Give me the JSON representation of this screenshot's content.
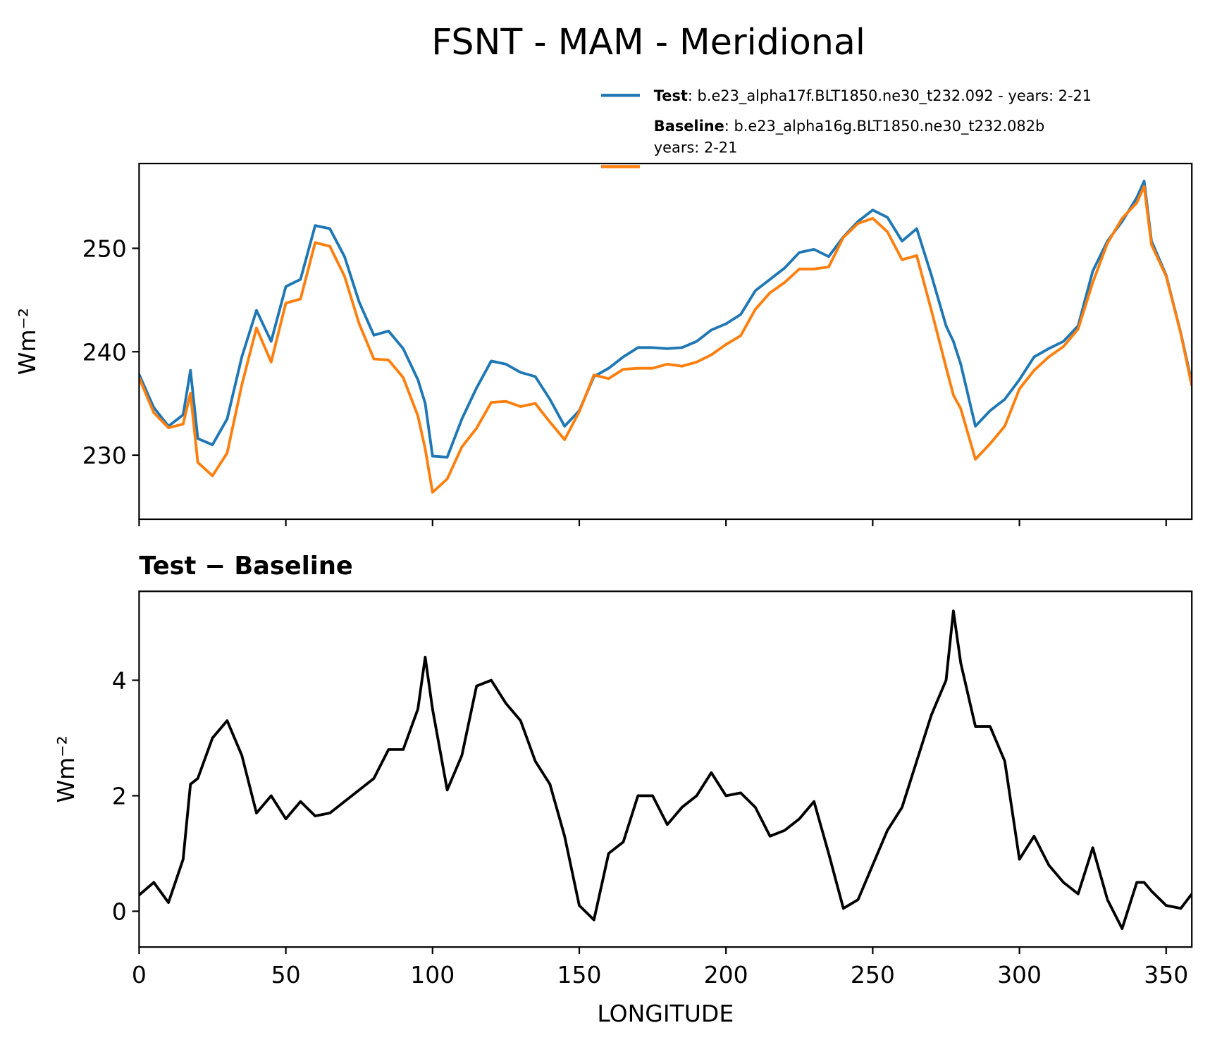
{
  "title": "FSNT - MAM - Meridional",
  "chart_data": [
    {
      "type": "line",
      "y_label": "Wm⁻²",
      "xlim": [
        0,
        358.75
      ],
      "ylim": [
        223.8,
        258.2
      ],
      "xticks": [
        0,
        50,
        100,
        150,
        200,
        250,
        300,
        350
      ],
      "xticklabels": false,
      "yticks": [
        230,
        240,
        250
      ],
      "legend": "upper right",
      "x": [
        0,
        5,
        10,
        15,
        17.5,
        20,
        25,
        30,
        35,
        40,
        45,
        50,
        55,
        60,
        65,
        70,
        75,
        80,
        85,
        90,
        95,
        97.5,
        100,
        105,
        110,
        115,
        120,
        125,
        130,
        135,
        140,
        145,
        150,
        155,
        160,
        165,
        170,
        175,
        180,
        185,
        190,
        195,
        200,
        205,
        210,
        215,
        220,
        225,
        230,
        235,
        240,
        245,
        250,
        255,
        260,
        265,
        270,
        275,
        277.5,
        280,
        285,
        290,
        295,
        300,
        305,
        310,
        315,
        320,
        325,
        330,
        335,
        340,
        342.5,
        345,
        350,
        355,
        358.75
      ],
      "series": [
        {
          "name": "Test",
          "description": [
            ": b.e23_alpha17f.BLT1850.ne30_t232.092 - years: 2-21"
          ],
          "color": "#1f77b4",
          "values": [
            237.8,
            234.6,
            232.8,
            233.9,
            238.2,
            231.6,
            231.0,
            233.5,
            239.5,
            244,
            241,
            246.3,
            247,
            252.2,
            251.9,
            249.2,
            244.8,
            241.6,
            242,
            240.3,
            237.3,
            235.0,
            229.9,
            229.8,
            233.5,
            236.5,
            239.1,
            238.8,
            238,
            237.6,
            235.4,
            232.8,
            234.3,
            237.6,
            238.4,
            239.5,
            240.4,
            240.4,
            240.3,
            240.4,
            241,
            242.1,
            242.7,
            243.6,
            245.9,
            247,
            248.1,
            249.6,
            249.9,
            249.2,
            251.1,
            252.6,
            253.7,
            253,
            250.7,
            251.9,
            247.4,
            242.5,
            241,
            238.8,
            232.8,
            234.3,
            235.4,
            237.3,
            239.5,
            240.3,
            241,
            242.5,
            247.8,
            250.7,
            252.6,
            254.9,
            256.5,
            250.7,
            247.4,
            241.8,
            237
          ]
        },
        {
          "name": "Baseline",
          "description": [
            ": b.e23_alpha16g.BLT1850.ne30_t232.082b",
            "years: 2-21"
          ],
          "color": "#ff7f0e",
          "values": [
            237.5,
            234.1,
            232.65,
            233.0,
            236.0,
            229.3,
            228.0,
            230.2,
            236.8,
            242.3,
            239,
            244.7,
            245.1,
            250.55,
            250.2,
            247.3,
            242.7,
            239.3,
            239.2,
            237.5,
            233.8,
            230.6,
            226.4,
            227.7,
            230.8,
            232.6,
            235.1,
            235.2,
            234.7,
            235,
            233.2,
            231.5,
            234.2,
            237.75,
            237.4,
            238.3,
            238.4,
            238.4,
            238.8,
            238.6,
            239,
            239.7,
            240.7,
            241.55,
            244.1,
            245.7,
            246.7,
            248,
            248,
            248.2,
            251.05,
            252.4,
            252.9,
            251.6,
            248.9,
            249.3,
            244,
            238.5,
            235.8,
            234.5,
            229.6,
            231.1,
            232.8,
            236.4,
            238.2,
            239.5,
            240.5,
            242.2,
            246.7,
            250.5,
            252.9,
            254.4,
            256,
            250.35,
            247.3,
            241.75,
            236.7
          ]
        }
      ]
    },
    {
      "type": "line",
      "title": "Test − Baseline",
      "x_label": "LONGITUDE",
      "y_label": "Wm⁻²",
      "xlim": [
        0,
        358.75
      ],
      "ylim": [
        -0.62,
        5.54
      ],
      "xticks": [
        0,
        50,
        100,
        150,
        200,
        250,
        300,
        350
      ],
      "xticklabels": true,
      "yticks": [
        0,
        2,
        4
      ],
      "x": [
        0,
        5,
        10,
        15,
        17.5,
        20,
        25,
        30,
        35,
        40,
        45,
        50,
        55,
        60,
        65,
        70,
        75,
        80,
        85,
        90,
        95,
        97.5,
        100,
        105,
        110,
        115,
        120,
        125,
        130,
        135,
        140,
        145,
        150,
        155,
        160,
        165,
        170,
        175,
        180,
        185,
        190,
        195,
        200,
        205,
        210,
        215,
        220,
        225,
        230,
        235,
        240,
        245,
        250,
        255,
        260,
        265,
        270,
        275,
        277.5,
        280,
        285,
        290,
        295,
        300,
        305,
        310,
        315,
        320,
        325,
        330,
        335,
        340,
        342.5,
        345,
        350,
        355,
        358.75
      ],
      "series": [
        {
          "color": "#000000",
          "values": [
            0.28,
            0.5,
            0.15,
            0.9,
            2.2,
            2.3,
            3.0,
            3.3,
            2.7,
            1.7,
            2.0,
            1.6,
            1.9,
            1.65,
            1.7,
            1.9,
            2.1,
            2.3,
            2.8,
            2.8,
            3.5,
            4.4,
            3.5,
            2.1,
            2.7,
            3.9,
            4.0,
            3.6,
            3.3,
            2.6,
            2.2,
            1.3,
            0.1,
            -0.15,
            1.0,
            1.2,
            2.0,
            2.0,
            1.5,
            1.8,
            2.0,
            2.4,
            2.0,
            2.05,
            1.8,
            1.3,
            1.4,
            1.6,
            1.9,
            1.0,
            0.05,
            0.2,
            0.8,
            1.4,
            1.8,
            2.6,
            3.4,
            4.0,
            5.2,
            4.3,
            3.2,
            3.2,
            2.6,
            0.9,
            1.3,
            0.8,
            0.5,
            0.3,
            1.1,
            0.2,
            -0.3,
            0.5,
            0.5,
            0.35,
            0.1,
            0.05,
            0.3
          ]
        }
      ]
    }
  ]
}
